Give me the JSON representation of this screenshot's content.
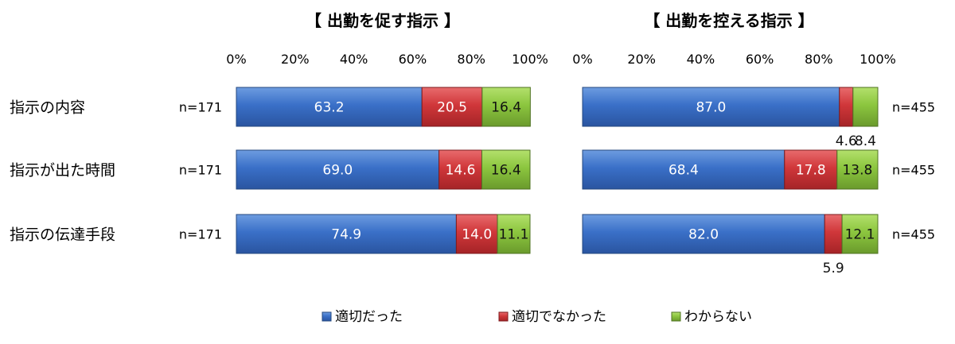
{
  "chart_data": {
    "type": "bar",
    "stacked": true,
    "orientation": "horizontal",
    "categories": [
      "指示の内容",
      "指示が出た時間",
      "指示の伝達手段"
    ],
    "series_labels": [
      "適切だった",
      "適切でなかった",
      "わからない"
    ],
    "colors": {
      "適切だった": "#3a70c8",
      "適切でなかった": "#d0373a",
      "わからない": "#8cc63f"
    },
    "xlim": [
      0,
      100
    ],
    "ticks": [
      "0%",
      "20%",
      "40%",
      "60%",
      "80%",
      "100%"
    ],
    "legend_position": "bottom",
    "grid": false,
    "panels": [
      {
        "title": "【 出勤を促す指示 】",
        "n_labels": [
          "n=171",
          "n=171",
          "n=171"
        ],
        "series": [
          {
            "name": "適切だった",
            "values": [
              63.2,
              69.0,
              74.9
            ]
          },
          {
            "name": "適切でなかった",
            "values": [
              20.5,
              14.6,
              14.0
            ]
          },
          {
            "name": "わからない",
            "values": [
              16.4,
              16.4,
              11.1
            ]
          }
        ]
      },
      {
        "title": "【 出勤を控える指示 】",
        "n_labels": [
          "n=455",
          "n=455",
          "n=455"
        ],
        "series": [
          {
            "name": "適切だった",
            "values": [
              87.0,
              68.4,
              82.0
            ]
          },
          {
            "name": "適切でなかった",
            "values": [
              4.6,
              17.8,
              5.9
            ]
          },
          {
            "name": "わからない",
            "values": [
              8.4,
              13.8,
              12.1
            ]
          }
        ]
      }
    ]
  }
}
